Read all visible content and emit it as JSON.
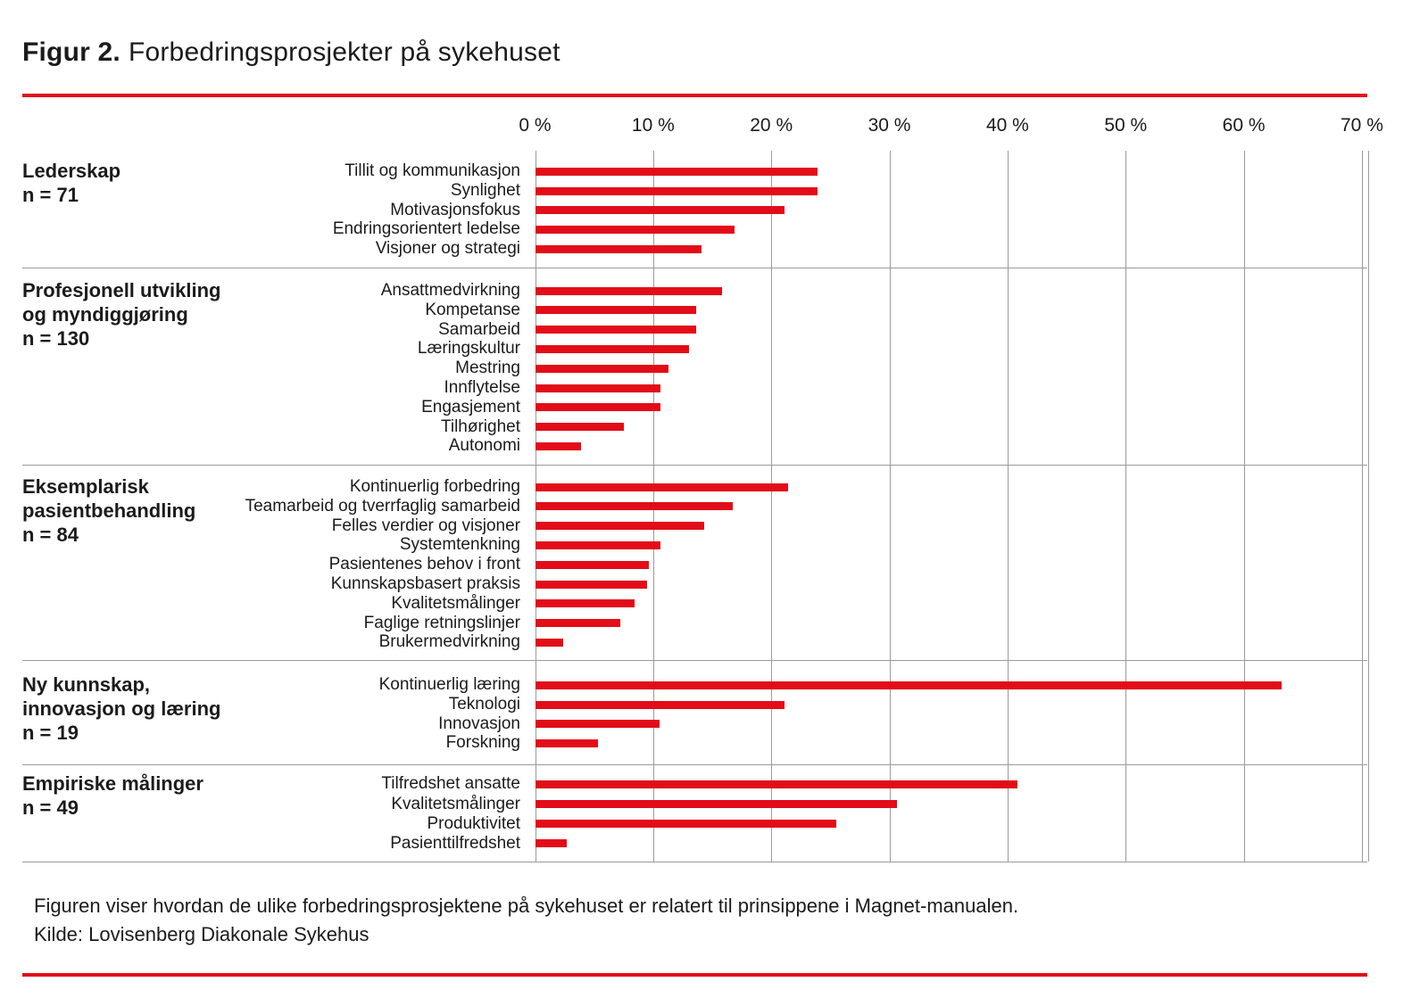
{
  "title": {
    "prefix": "Figur 2.",
    "text": "Forbedringsprosjekter på sykehuset"
  },
  "footer": {
    "caption": "Figuren viser hvordan de ulike forbedringsprosjektene på sykehuset er relatert til prinsippene i Magnet-manualen.",
    "source": "Kilde: Lovisenberg Diakonale Sykehus"
  },
  "colors": {
    "accent_red": "#e20d18",
    "text": "#1b1b1b",
    "gridline": "#9b9b9b",
    "background": "#ffffff"
  },
  "chart_data": {
    "type": "bar",
    "orientation": "horizontal",
    "title": "Figur 2. Forbedringsprosjekter på sykehuset",
    "xlabel": "",
    "unit": "%",
    "xlim": [
      0,
      70
    ],
    "x_tick_labels": [
      "0 %",
      "10 %",
      "20 %",
      "30 %",
      "40 %",
      "50 %",
      "60 %",
      "70 %"
    ],
    "x_tick_values": [
      0,
      10,
      20,
      30,
      40,
      50,
      60,
      70
    ],
    "grid": true,
    "legend": false,
    "bar_color": "#e20d18",
    "groups": [
      {
        "name_lines": [
          "Lederskap"
        ],
        "n": 71,
        "n_label": "n = 71",
        "items": [
          {
            "label": "Tillit og kommunikasjon",
            "value": 23.9
          },
          {
            "label": "Synlighet",
            "value": 23.9
          },
          {
            "label": "Motivasjonsfokus",
            "value": 21.1
          },
          {
            "label": "Endringsorientert ledelse",
            "value": 16.9
          },
          {
            "label": "Visjoner og strategi",
            "value": 14.1
          }
        ]
      },
      {
        "name_lines": [
          "Profesjonell utvikling",
          "og myndiggjøring"
        ],
        "n": 130,
        "n_label": "n = 130",
        "items": [
          {
            "label": "Ansattmedvirkning",
            "value": 15.8
          },
          {
            "label": "Kompetanse",
            "value": 13.6
          },
          {
            "label": "Samarbeid",
            "value": 13.6
          },
          {
            "label": "Læringskultur",
            "value": 13.0
          },
          {
            "label": "Mestring",
            "value": 11.3
          },
          {
            "label": "Innflytelse",
            "value": 10.6
          },
          {
            "label": "Engasjement",
            "value": 10.6
          },
          {
            "label": "Tilhørighet",
            "value": 7.5
          },
          {
            "label": "Autonomi",
            "value": 3.9
          }
        ]
      },
      {
        "name_lines": [
          "Eksemplarisk",
          "pasientbehandling"
        ],
        "n": 84,
        "n_label": "n = 84",
        "items": [
          {
            "label": "Kontinuerlig forbedring",
            "value": 21.4
          },
          {
            "label": "Teamarbeid og tverrfaglig samarbeid",
            "value": 16.7
          },
          {
            "label": "Felles verdier og visjoner",
            "value": 14.3
          },
          {
            "label": "Systemtenkning",
            "value": 10.6
          },
          {
            "label": "Pasientenes behov i front",
            "value": 9.6
          },
          {
            "label": "Kunnskapsbasert praksis",
            "value": 9.5
          },
          {
            "label": "Kvalitetsmålinger",
            "value": 8.4
          },
          {
            "label": "Faglige retningslinjer",
            "value": 7.2
          },
          {
            "label": "Brukermedvirkning",
            "value": 2.4
          }
        ]
      },
      {
        "name_lines": [
          "Ny kunnskap,",
          "innovasjon og læring"
        ],
        "n": 19,
        "n_label": "n = 19",
        "items": [
          {
            "label": "Kontinuerlig læring",
            "value": 63.2
          },
          {
            "label": "Teknologi",
            "value": 21.1
          },
          {
            "label": "Innovasjon",
            "value": 10.5
          },
          {
            "label": "Forskning",
            "value": 5.3
          }
        ]
      },
      {
        "name_lines": [
          "Empiriske målinger"
        ],
        "n": 49,
        "n_label": "n = 49",
        "items": [
          {
            "label": "Tilfredshet ansatte",
            "value": 40.8
          },
          {
            "label": "Kvalitetsmålinger",
            "value": 30.6
          },
          {
            "label": "Produktivitet",
            "value": 25.5
          },
          {
            "label": "Pasienttilfredshet",
            "value": 2.7
          }
        ]
      }
    ]
  }
}
